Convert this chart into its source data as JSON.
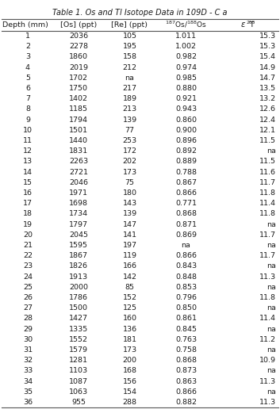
{
  "title": "Table 1. Os and Tl Isotope Data in 109D ‐ C a",
  "col0": [
    1,
    2,
    3,
    4,
    5,
    6,
    7,
    8,
    9,
    10,
    11,
    12,
    13,
    14,
    15,
    16,
    17,
    18,
    19,
    20,
    21,
    22,
    23,
    24,
    25,
    26,
    27,
    28,
    29,
    30,
    31,
    32,
    33,
    34,
    35,
    36
  ],
  "col1": [
    "2036",
    "2278",
    "1860",
    "2019",
    "1702",
    "1750",
    "1402",
    "1185",
    "1794",
    "1501",
    "1440",
    "1831",
    "2263",
    "2721",
    "2046",
    "1971",
    "1698",
    "1734",
    "1797",
    "2045",
    "1595",
    "1867",
    "1826",
    "1913",
    "2000",
    "1786",
    "1500",
    "1427",
    "1335",
    "1552",
    "1579",
    "1281",
    "1103",
    "1087",
    "1063",
    "955"
  ],
  "col2": [
    "105",
    "195",
    "158",
    "212",
    "na",
    "217",
    "189",
    "213",
    "139",
    "77",
    "253",
    "172",
    "202",
    "173",
    "75",
    "180",
    "143",
    "139",
    "147",
    "141",
    "197",
    "119",
    "166",
    "142",
    "85",
    "152",
    "125",
    "160",
    "136",
    "181",
    "173",
    "200",
    "168",
    "156",
    "154",
    "288"
  ],
  "col3": [
    "1.011",
    "1.002",
    "0.982",
    "0.974",
    "0.985",
    "0.880",
    "0.921",
    "0.943",
    "0.860",
    "0.900",
    "0.896",
    "0.892",
    "0.889",
    "0.788",
    "0.867",
    "0.866",
    "0.771",
    "0.868",
    "0.871",
    "0.869",
    "na",
    "0.866",
    "0.843",
    "0.848",
    "0.853",
    "0.796",
    "0.850",
    "0.861",
    "0.845",
    "0.763",
    "0.758",
    "0.868",
    "0.873",
    "0.863",
    "0.866",
    "0.882"
  ],
  "col4": [
    "15.3",
    "15.3",
    "15.4",
    "14.9",
    "14.7",
    "13.5",
    "13.2",
    "12.6",
    "12.4",
    "12.1",
    "11.5",
    "na",
    "11.5",
    "11.6",
    "11.7",
    "11.8",
    "11.4",
    "11.8",
    "na",
    "11.7",
    "na",
    "11.7",
    "na",
    "11.3",
    "na",
    "11.8",
    "na",
    "11.4",
    "na",
    "11.2",
    "na",
    "10.9",
    "na",
    "11.3",
    "na",
    "11.3"
  ],
  "bg_color": "#ffffff",
  "text_color": "#1a1a1a",
  "line_color": "#555555",
  "font_size": 6.8,
  "title_font_size": 7.0
}
